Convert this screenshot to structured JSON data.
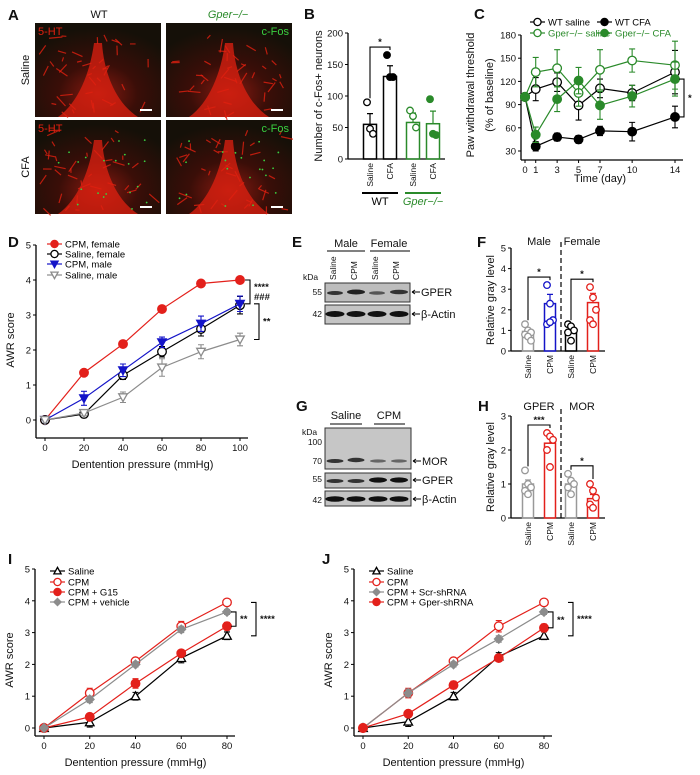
{
  "figure": {
    "A": {
      "label": "A",
      "col_wt": "WT",
      "col_gper": "Gper−/−",
      "row_saline": "Saline",
      "row_cfa": "CFA",
      "stain_5ht": "5-HT",
      "stain_cfos": "c-Fos"
    },
    "B": {
      "label": "B"
    },
    "C": {
      "label": "C"
    },
    "D": {
      "label": "D"
    },
    "E": {
      "label": "E",
      "groups": [
        "Male",
        "Female"
      ],
      "lanes": [
        "Saline",
        "CPM",
        "Saline",
        "CPM"
      ],
      "kda_unit": "kDa",
      "kda": [
        "55",
        "42"
      ],
      "bands": [
        "GPER",
        "β-Actin"
      ]
    },
    "F": {
      "label": "F"
    },
    "G": {
      "label": "G",
      "groups": [
        "Saline",
        "CPM"
      ],
      "kda_unit": "kDa",
      "kda": [
        "100",
        "70",
        "55",
        "42"
      ],
      "bands": [
        "MOR",
        "GPER",
        "β-Actin"
      ]
    },
    "H": {
      "label": "H"
    },
    "I": {
      "label": "I"
    },
    "J": {
      "label": "J"
    }
  },
  "colors": {
    "red": "#e3201b",
    "blue": "#1414c8",
    "gray": "#8c8c8c",
    "green": "#2a8a2a",
    "black": "#000000",
    "stain_red": "#e02010",
    "stain_green": "#3ad040"
  },
  "chart_data": [
    {
      "id": "B",
      "type": "bar",
      "ylabel": "Number of c-Fos+ neurons",
      "ylim": [
        0,
        200
      ],
      "yticks": [
        0,
        50,
        100,
        150,
        200
      ],
      "categories": [
        "Saline",
        "CFA",
        "Saline",
        "CFA"
      ],
      "groups": [
        {
          "label": "WT",
          "color": "#000000",
          "bars": [
            0,
            1
          ]
        },
        {
          "label": "Gper−/−",
          "color": "#2a8a2a",
          "bars": [
            2,
            3
          ]
        }
      ],
      "values": [
        55,
        131,
        58,
        56
      ],
      "errors": [
        17,
        17,
        15,
        20
      ],
      "points": [
        [
          90,
          48,
          40
        ],
        [
          165,
          130,
          130
        ],
        [
          77,
          68,
          50
        ],
        [
          95,
          40,
          38
        ]
      ],
      "point_fill": [
        "open",
        "filled",
        "open",
        "filled"
      ],
      "bar_colors": [
        "#000000",
        "#000000",
        "#2a8a2a",
        "#2a8a2a"
      ],
      "significance": [
        {
          "bars": [
            0,
            1
          ],
          "label": "*"
        }
      ]
    },
    {
      "id": "C",
      "type": "line",
      "xlabel": "Time (day)",
      "ylabel": "Paw withdrawal threshold",
      "ylabel_sub": "(% of baseline)",
      "x": [
        0,
        1,
        3,
        5,
        7,
        10,
        14
      ],
      "xticks": [
        0,
        1,
        3,
        5,
        7,
        10,
        14
      ],
      "xlim": [
        0,
        14
      ],
      "ylim": [
        30,
        180
      ],
      "yticks": [
        30,
        60,
        90,
        120,
        150,
        180
      ],
      "series": [
        {
          "name": "WT saline",
          "color": "#000000",
          "marker": "circle-open",
          "y": [
            100,
            110,
            119,
            89,
            111,
            105,
            132
          ],
          "err": [
            0,
            15,
            12,
            19,
            12,
            10,
            28
          ]
        },
        {
          "name": "WT CFA",
          "color": "#000000",
          "marker": "circle-filled",
          "y": [
            100,
            36,
            48,
            45,
            56,
            55,
            74
          ],
          "err": [
            0,
            6,
            5,
            5,
            6,
            12,
            14
          ]
        },
        {
          "name": "Gper−/− saline",
          "color": "#2a8a2a",
          "marker": "circle-open",
          "y": [
            100,
            132,
            137,
            105,
            135,
            147,
            141
          ],
          "err": [
            0,
            19,
            24,
            17,
            26,
            15,
            31
          ]
        },
        {
          "name": "Gper−/− CFA",
          "color": "#2a8a2a",
          "marker": "circle-filled",
          "y": [
            100,
            51,
            97,
            121,
            89,
            101,
            123
          ],
          "err": [
            0,
            10,
            16,
            17,
            18,
            14,
            22
          ]
        }
      ],
      "significance": [
        "*"
      ]
    },
    {
      "id": "D",
      "type": "line",
      "xlabel": "Dentention pressure (mmHg)",
      "ylabel": "AWR score",
      "x": [
        0,
        20,
        40,
        60,
        80,
        100
      ],
      "xticks": [
        0,
        20,
        40,
        60,
        80,
        100
      ],
      "xlim": [
        0,
        100
      ],
      "ylim": [
        0,
        5
      ],
      "yticks": [
        0,
        1,
        2,
        3,
        4,
        5
      ],
      "series": [
        {
          "name": "CPM, female",
          "color": "#e3201b",
          "marker": "circle-filled",
          "y": [
            0,
            1.35,
            2.17,
            3.17,
            3.9,
            4.0
          ],
          "err": [
            0,
            0.05,
            0.05,
            0.08,
            0.05,
            0.05
          ]
        },
        {
          "name": "Saline, female",
          "color": "#000000",
          "marker": "circle-open",
          "y": [
            0,
            0.17,
            1.28,
            1.95,
            2.6,
            3.28
          ],
          "err": [
            0.1,
            0.1,
            0.12,
            0.15,
            0.2,
            0.25
          ]
        },
        {
          "name": "CPM, male",
          "color": "#1414c8",
          "marker": "tri-down-filled",
          "y": [
            0,
            0.62,
            1.42,
            2.22,
            2.75,
            3.32
          ],
          "err": [
            0,
            0.2,
            0.18,
            0.15,
            0.22,
            0.22
          ]
        },
        {
          "name": "Saline, male",
          "color": "#8c8c8c",
          "marker": "tri-down-open",
          "y": [
            0,
            0.2,
            0.65,
            1.5,
            1.95,
            2.3
          ],
          "err": [
            0,
            0.08,
            0.15,
            0.25,
            0.2,
            0.18
          ]
        }
      ],
      "significance": [
        "****",
        "###",
        "**"
      ]
    },
    {
      "id": "F",
      "type": "bar",
      "ylabel": "Relative gray level",
      "ylim": [
        0,
        5
      ],
      "yticks": [
        0,
        1,
        2,
        3,
        4,
        5
      ],
      "categories": [
        "Saline",
        "CPM",
        "Saline",
        "CPM"
      ],
      "groups": [
        {
          "label": "Male",
          "bars": [
            0,
            1
          ]
        },
        {
          "label": "Female",
          "bars": [
            2,
            3
          ]
        }
      ],
      "values": [
        0.95,
        2.3,
        0.9,
        2.35
      ],
      "errors": [
        0.15,
        0.45,
        0.15,
        0.45
      ],
      "points": [
        [
          1.3,
          1.0,
          0.9,
          0.8,
          0.7,
          0.5
        ],
        [
          3.2,
          2.3,
          1.5,
          1.3,
          1.4
        ],
        [
          1.3,
          1.2,
          1.0,
          0.9,
          0.5
        ],
        [
          3.1,
          2.6,
          2.0,
          1.5,
          1.3
        ]
      ],
      "point_fill": [
        "open",
        "open",
        "open",
        "open"
      ],
      "bar_colors": [
        "#999999",
        "#1414c8",
        "#000000",
        "#e3201b"
      ],
      "significance": [
        {
          "bars": [
            0,
            1
          ],
          "label": "*"
        },
        {
          "bars": [
            2,
            3
          ],
          "label": "*"
        }
      ]
    },
    {
      "id": "H",
      "type": "bar",
      "ylabel": "Relative gray level",
      "ylim": [
        0,
        3
      ],
      "yticks": [
        0,
        1,
        2,
        3
      ],
      "categories": [
        "Saline",
        "CPM",
        "Saline",
        "CPM"
      ],
      "groups": [
        {
          "label": "GPER",
          "bars": [
            0,
            1
          ]
        },
        {
          "label": "MOR",
          "bars": [
            2,
            3
          ]
        }
      ],
      "values": [
        1.0,
        2.2,
        1.0,
        0.57
      ],
      "errors": [
        0.12,
        0.22,
        0.12,
        0.12
      ],
      "points": [
        [
          1.4,
          1.0,
          0.9,
          0.8,
          0.7
        ],
        [
          2.5,
          2.4,
          2.3,
          2.0,
          1.5
        ],
        [
          1.3,
          1.1,
          1.0,
          0.9,
          0.7
        ],
        [
          1.0,
          0.8,
          0.6,
          0.4,
          0.3
        ]
      ],
      "point_fill": [
        "open",
        "open",
        "open",
        "open"
      ],
      "bar_colors": [
        "#999999",
        "#e3201b",
        "#999999",
        "#e3201b"
      ],
      "significance": [
        {
          "bars": [
            0,
            1
          ],
          "label": "***"
        },
        {
          "bars": [
            2,
            3
          ],
          "label": "*"
        }
      ]
    },
    {
      "id": "I",
      "type": "line",
      "xlabel": "Dentention pressure (mmHg)",
      "ylabel": "AWR score",
      "x": [
        0,
        20,
        40,
        60,
        80
      ],
      "xticks": [
        0,
        20,
        40,
        60,
        80
      ],
      "xlim": [
        0,
        80
      ],
      "ylim": [
        0,
        5
      ],
      "yticks": [
        0,
        1,
        2,
        3,
        4,
        5
      ],
      "series": [
        {
          "name": "Saline",
          "color": "#000000",
          "marker": "tri-up-open",
          "y": [
            0,
            0.18,
            1.0,
            2.2,
            2.9
          ],
          "err": [
            0.1,
            0.15,
            0.12,
            0.15,
            0.12
          ]
        },
        {
          "name": "CPM",
          "color": "#e3201b",
          "marker": "circle-open",
          "y": [
            0,
            1.1,
            2.1,
            3.2,
            3.95
          ],
          "err": [
            0,
            0.15,
            0.1,
            0.15,
            0.08
          ]
        },
        {
          "name": "CPM + G15",
          "color": "#e3201b",
          "marker": "circle-filled",
          "y": [
            0,
            0.35,
            1.4,
            2.35,
            3.2
          ],
          "err": [
            0,
            0.1,
            0.15,
            0.1,
            0.12
          ]
        },
        {
          "name": "CPM + vehicle",
          "color": "#8c8c8c",
          "marker": "diamond-filled",
          "y": [
            0,
            0.9,
            2.0,
            3.1,
            3.65
          ],
          "err": [
            0,
            0.1,
            0.08,
            0.1,
            0.08
          ]
        }
      ],
      "significance": [
        "**",
        "****"
      ]
    },
    {
      "id": "J",
      "type": "line",
      "xlabel": "Dentention pressure (mmHg)",
      "ylabel": "AWR score",
      "x": [
        0,
        20,
        40,
        60,
        80
      ],
      "xticks": [
        0,
        20,
        40,
        60,
        80
      ],
      "xlim": [
        0,
        80
      ],
      "ylim": [
        0,
        5
      ],
      "yticks": [
        0,
        1,
        2,
        3,
        4,
        5
      ],
      "series": [
        {
          "name": "Saline",
          "color": "#000000",
          "marker": "tri-up-open",
          "y": [
            0,
            0.2,
            1.0,
            2.25,
            2.9
          ],
          "err": [
            0.1,
            0.15,
            0.12,
            0.12,
            0.12
          ]
        },
        {
          "name": "CPM",
          "color": "#e3201b",
          "marker": "circle-open",
          "y": [
            0,
            1.1,
            2.1,
            3.2,
            3.95
          ],
          "err": [
            0,
            0.15,
            0.08,
            0.18,
            0.08
          ]
        },
        {
          "name": "CPM + Scr-shRNA",
          "color": "#8c8c8c",
          "marker": "diamond-filled",
          "y": [
            0,
            1.1,
            2.0,
            2.8,
            3.65
          ],
          "err": [
            0,
            0.12,
            0.08,
            0.1,
            0.08
          ]
        },
        {
          "name": "CPM + Gper-shRNA",
          "color": "#e3201b",
          "marker": "circle-filled",
          "y": [
            0,
            0.45,
            1.35,
            2.2,
            3.15
          ],
          "err": [
            0,
            0.1,
            0.12,
            0.1,
            0.12
          ]
        }
      ],
      "significance": [
        "**",
        "****"
      ]
    }
  ]
}
